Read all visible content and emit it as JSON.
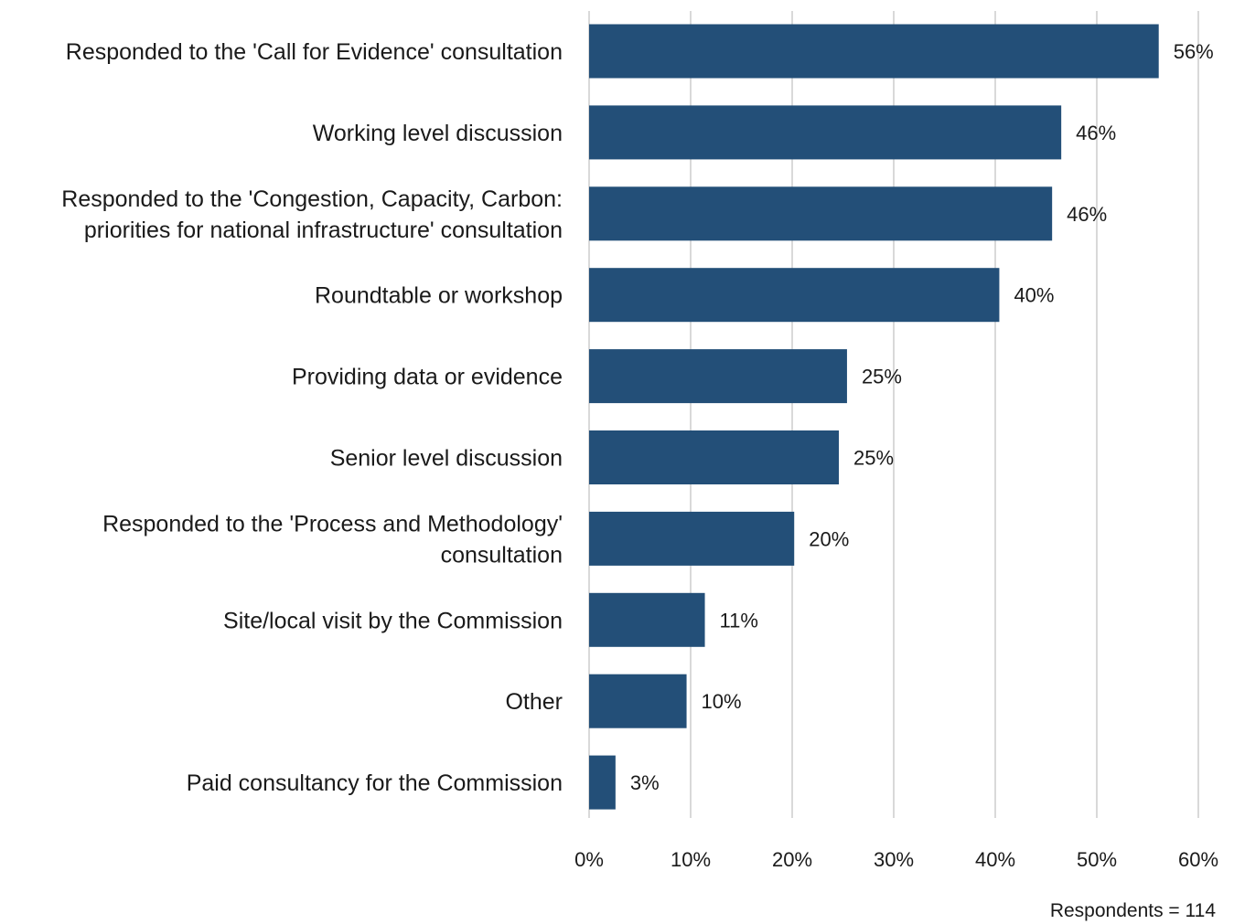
{
  "chart_data": {
    "type": "bar",
    "orientation": "horizontal",
    "categories": [
      [
        "Responded to the 'Call for Evidence' consultation"
      ],
      [
        "Working level discussion"
      ],
      [
        "Responded to the 'Congestion, Capacity, Carbon:",
        "priorities for national infrastructure' consultation"
      ],
      [
        "Roundtable or workshop"
      ],
      [
        "Providing data or evidence"
      ],
      [
        "Senior level discussion"
      ],
      [
        "Responded to the 'Process and Methodology'",
        "consultation"
      ],
      [
        "Site/local visit by the Commission"
      ],
      [
        "Other"
      ],
      [
        "Paid consultancy for the Commission"
      ]
    ],
    "values": [
      56.1,
      46.5,
      45.6,
      40.4,
      25.4,
      24.6,
      20.2,
      11.4,
      9.6,
      2.6
    ],
    "data_labels": [
      "56%",
      "46%",
      "46%",
      "40%",
      "25%",
      "25%",
      "20%",
      "11%",
      "10%",
      "3%"
    ],
    "xlim": [
      0,
      60
    ],
    "x_ticks": [
      0,
      10,
      20,
      30,
      40,
      50,
      60
    ],
    "x_tick_labels": [
      "0%",
      "10%",
      "20%",
      "30%",
      "40%",
      "50%",
      "60%"
    ],
    "grid": "vertical",
    "bar_color": "#234f78",
    "grid_color": "#d9d9d9"
  },
  "footnote": "Respondents = 114"
}
